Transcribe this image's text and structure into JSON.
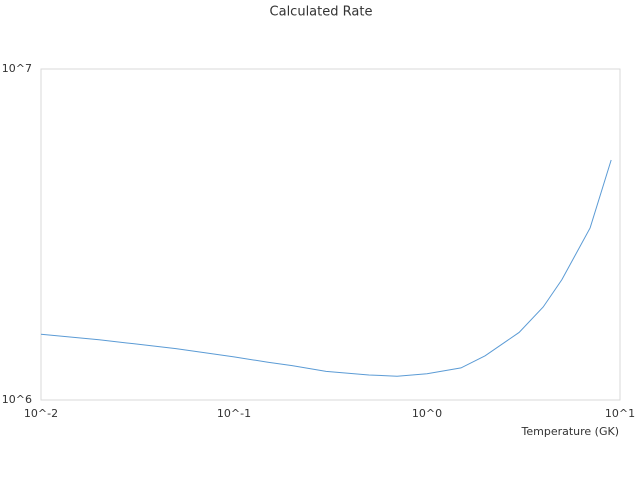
{
  "chart_data": {
    "type": "line",
    "title": "Calculated Rate",
    "x_label": "Temperature (GK)",
    "log_x": true,
    "log_y": true,
    "color": "#5b9bd5",
    "x": [
      0.01,
      0.02,
      0.03,
      0.05,
      0.07,
      0.1,
      0.15,
      0.2,
      0.3,
      0.5,
      0.7,
      1,
      1.5,
      2,
      3,
      4,
      5,
      7,
      9
    ],
    "values": [
      1580000,
      1520000,
      1480000,
      1430000,
      1390000,
      1350000,
      1300000,
      1270000,
      1220000,
      1190000,
      1180000,
      1200000,
      1250000,
      1360000,
      1600000,
      1910000,
      2310000,
      3310000,
      5310000
    ],
    "xlim": [
      0.01,
      10
    ],
    "ylim": [
      1000000,
      10000000
    ],
    "xticks": [
      {
        "value": 0.01,
        "label": "10^-2"
      },
      {
        "value": 0.1,
        "label": "10^-1"
      },
      {
        "value": 1,
        "label": "10^0"
      },
      {
        "value": 10,
        "label": "10^1"
      }
    ],
    "yticks": [
      {
        "value": 1000000,
        "label": "10^6"
      },
      {
        "value": 10000000,
        "label": "10^7"
      }
    ]
  }
}
